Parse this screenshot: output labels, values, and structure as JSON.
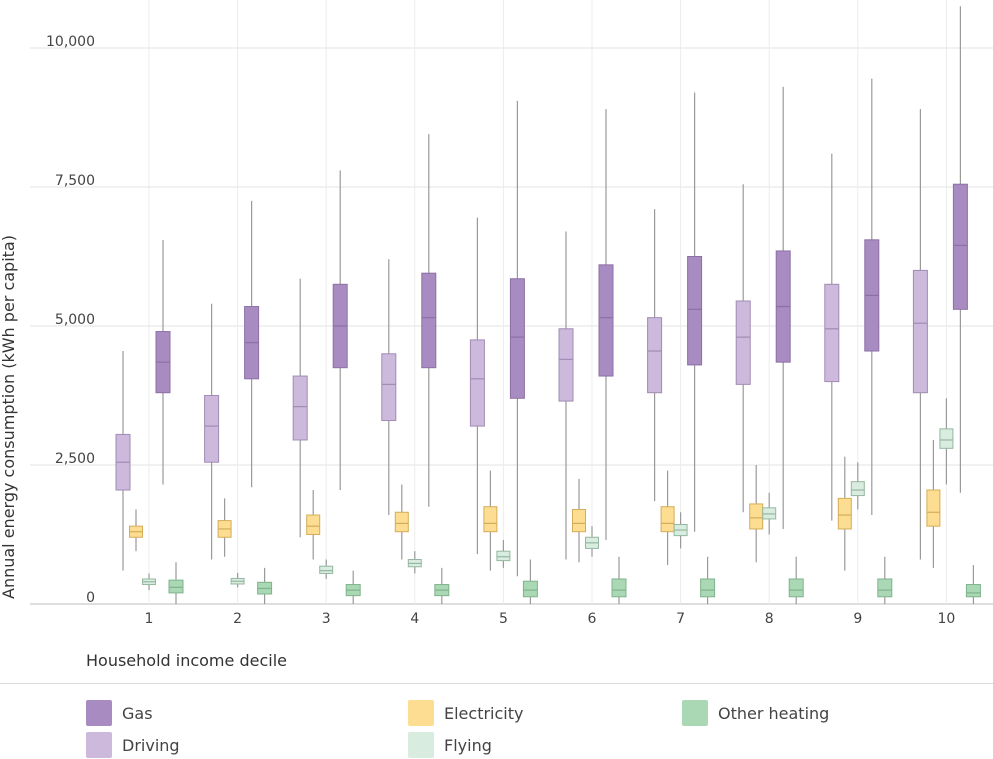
{
  "chart_data": {
    "type": "box",
    "title": "",
    "xlabel": "Household income decile",
    "ylabel": "Annual energy consumption (kWh per capita)",
    "ylim": [
      0,
      11000
    ],
    "yticks": [
      0,
      2500,
      5000,
      7500,
      10000
    ],
    "ytick_labels": [
      "0",
      "2,500",
      "5,000",
      "7,500",
      "10,000"
    ],
    "categories": [
      "1",
      "2",
      "3",
      "4",
      "5",
      "6",
      "7",
      "8",
      "9",
      "10"
    ],
    "grid": true,
    "legend_position": "bottom",
    "series": [
      {
        "name": "Driving",
        "color": "#cdb9dc",
        "stroke": "#a08cb4",
        "boxes": [
          {
            "min": 600,
            "q1": 2050,
            "median": 2550,
            "q3": 3050,
            "max": 4550
          },
          {
            "min": 800,
            "q1": 2550,
            "median": 3200,
            "q3": 3750,
            "max": 5400
          },
          {
            "min": 1200,
            "q1": 2950,
            "median": 3550,
            "q3": 4100,
            "max": 5850
          },
          {
            "min": 1600,
            "q1": 3300,
            "median": 3950,
            "q3": 4500,
            "max": 6200
          },
          {
            "min": 900,
            "q1": 3200,
            "median": 4050,
            "q3": 4750,
            "max": 6950
          },
          {
            "min": 800,
            "q1": 3650,
            "median": 4400,
            "q3": 4950,
            "max": 6700
          },
          {
            "min": 1850,
            "q1": 3800,
            "median": 4550,
            "q3": 5150,
            "max": 7100
          },
          {
            "min": 1650,
            "q1": 3950,
            "median": 4800,
            "q3": 5450,
            "max": 7550
          },
          {
            "min": 1500,
            "q1": 4000,
            "median": 4950,
            "q3": 5750,
            "max": 8100
          },
          {
            "min": 800,
            "q1": 3800,
            "median": 5050,
            "q3": 6000,
            "max": 8900
          }
        ]
      },
      {
        "name": "Gas",
        "color": "#a88cc1",
        "stroke": "#8c70a5",
        "boxes": [
          {
            "min": 2150,
            "q1": 3800,
            "median": 4350,
            "q3": 4900,
            "max": 6550
          },
          {
            "min": 2100,
            "q1": 4050,
            "median": 4700,
            "q3": 5350,
            "max": 7250
          },
          {
            "min": 2050,
            "q1": 4250,
            "median": 5000,
            "q3": 5750,
            "max": 7800
          },
          {
            "min": 1750,
            "q1": 4250,
            "median": 5150,
            "q3": 5950,
            "max": 8450
          },
          {
            "min": 500,
            "q1": 3700,
            "median": 4800,
            "q3": 5850,
            "max": 9050
          },
          {
            "min": 1150,
            "q1": 4100,
            "median": 5150,
            "q3": 6100,
            "max": 8900
          },
          {
            "min": 1300,
            "q1": 4300,
            "median": 5300,
            "q3": 6250,
            "max": 9200
          },
          {
            "min": 1350,
            "q1": 4350,
            "median": 5350,
            "q3": 6350,
            "max": 9300
          },
          {
            "min": 1600,
            "q1": 4550,
            "median": 5550,
            "q3": 6550,
            "max": 9450
          },
          {
            "min": 2000,
            "q1": 5300,
            "median": 6450,
            "q3": 7550,
            "max": 10750
          }
        ]
      },
      {
        "name": "Electricity",
        "color": "#fddd92",
        "stroke": "#d4ad58",
        "boxes": [
          {
            "min": 950,
            "q1": 1200,
            "median": 1300,
            "q3": 1400,
            "max": 1700
          },
          {
            "min": 850,
            "q1": 1200,
            "median": 1350,
            "q3": 1500,
            "max": 1900
          },
          {
            "min": 800,
            "q1": 1250,
            "median": 1400,
            "q3": 1600,
            "max": 2050
          },
          {
            "min": 800,
            "q1": 1300,
            "median": 1450,
            "q3": 1650,
            "max": 2150
          },
          {
            "min": 600,
            "q1": 1300,
            "median": 1450,
            "q3": 1750,
            "max": 2400
          },
          {
            "min": 750,
            "q1": 1300,
            "median": 1450,
            "q3": 1700,
            "max": 2250
          },
          {
            "min": 700,
            "q1": 1300,
            "median": 1450,
            "q3": 1750,
            "max": 2400
          },
          {
            "min": 750,
            "q1": 1350,
            "median": 1550,
            "q3": 1800,
            "max": 2500
          },
          {
            "min": 600,
            "q1": 1350,
            "median": 1600,
            "q3": 1900,
            "max": 2650
          },
          {
            "min": 650,
            "q1": 1400,
            "median": 1650,
            "q3": 2050,
            "max": 2950
          }
        ]
      },
      {
        "name": "Flying",
        "color": "#d9ece0",
        "stroke": "#95b7a0",
        "boxes": [
          {
            "min": 250,
            "q1": 350,
            "median": 400,
            "q3": 450,
            "max": 550
          },
          {
            "min": 300,
            "q1": 360,
            "median": 410,
            "q3": 460,
            "max": 560
          },
          {
            "min": 450,
            "q1": 550,
            "median": 600,
            "q3": 680,
            "max": 800
          },
          {
            "min": 550,
            "q1": 670,
            "median": 730,
            "q3": 800,
            "max": 950
          },
          {
            "min": 650,
            "q1": 780,
            "median": 850,
            "q3": 950,
            "max": 1150
          },
          {
            "min": 850,
            "q1": 1000,
            "median": 1100,
            "q3": 1200,
            "max": 1400
          },
          {
            "min": 1000,
            "q1": 1230,
            "median": 1330,
            "q3": 1430,
            "max": 1650
          },
          {
            "min": 1250,
            "q1": 1530,
            "median": 1620,
            "q3": 1730,
            "max": 2000
          },
          {
            "min": 1700,
            "q1": 1950,
            "median": 2050,
            "q3": 2200,
            "max": 2550
          },
          {
            "min": 2150,
            "q1": 2800,
            "median": 2950,
            "q3": 3150,
            "max": 3700
          }
        ]
      },
      {
        "name": "Other heating",
        "color": "#aad8b4",
        "stroke": "#7fb38c",
        "boxes": [
          {
            "min": 0,
            "q1": 200,
            "median": 300,
            "q3": 430,
            "max": 750
          },
          {
            "min": 0,
            "q1": 180,
            "median": 280,
            "q3": 390,
            "max": 650
          },
          {
            "min": 0,
            "q1": 150,
            "median": 250,
            "q3": 350,
            "max": 600
          },
          {
            "min": 0,
            "q1": 150,
            "median": 250,
            "q3": 350,
            "max": 650
          },
          {
            "min": 0,
            "q1": 130,
            "median": 250,
            "q3": 410,
            "max": 800
          },
          {
            "min": 0,
            "q1": 130,
            "median": 250,
            "q3": 450,
            "max": 850
          },
          {
            "min": 0,
            "q1": 130,
            "median": 250,
            "q3": 450,
            "max": 850
          },
          {
            "min": 0,
            "q1": 130,
            "median": 250,
            "q3": 450,
            "max": 850
          },
          {
            "min": 0,
            "q1": 130,
            "median": 250,
            "q3": 450,
            "max": 850
          },
          {
            "min": 0,
            "q1": 130,
            "median": 200,
            "q3": 350,
            "max": 700
          }
        ]
      }
    ]
  },
  "legend": {
    "items": [
      {
        "label": "Gas",
        "color": "#a88cc1"
      },
      {
        "label": "Electricity",
        "color": "#fddd92"
      },
      {
        "label": "Other heating",
        "color": "#aad8b4"
      },
      {
        "label": "Driving",
        "color": "#cdb9dc"
      },
      {
        "label": "Flying",
        "color": "#d9ece0"
      }
    ]
  }
}
